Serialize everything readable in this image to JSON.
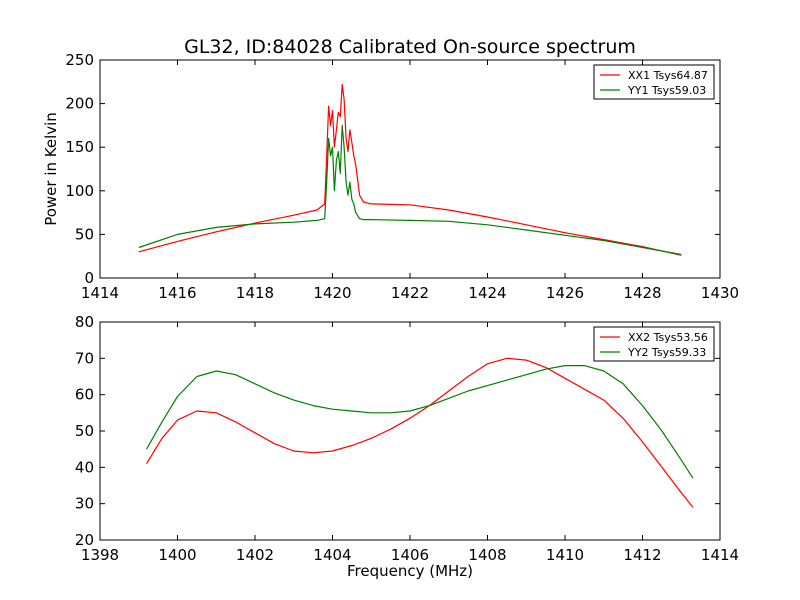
{
  "figure": {
    "title": "GL32, ID:84028 Calibrated On-source spectrum"
  },
  "chart_data": [
    {
      "type": "line",
      "title": "GL32, ID:84028 Calibrated On-source spectrum",
      "xlabel": "",
      "ylabel": "Power in Kelvin",
      "xlim": [
        1414,
        1430
      ],
      "ylim": [
        0,
        250
      ],
      "xticks": [
        1414,
        1416,
        1418,
        1420,
        1422,
        1424,
        1426,
        1428,
        1430
      ],
      "yticks": [
        0,
        50,
        100,
        150,
        200,
        250
      ],
      "grid": false,
      "legend_position": "top-right",
      "series": [
        {
          "name": "XX1 Tsys64.87",
          "color": "#ff0000",
          "x": [
            1415.0,
            1416.0,
            1417.0,
            1418.0,
            1419.0,
            1419.6,
            1419.8,
            1419.85,
            1419.9,
            1419.95,
            1420.0,
            1420.05,
            1420.1,
            1420.15,
            1420.2,
            1420.25,
            1420.3,
            1420.35,
            1420.4,
            1420.45,
            1420.5,
            1420.55,
            1420.6,
            1420.7,
            1420.8,
            1421.0,
            1422.0,
            1423.0,
            1424.0,
            1425.0,
            1426.0,
            1427.0,
            1428.0,
            1429.0
          ],
          "y": [
            30,
            42,
            53,
            63,
            72,
            78,
            85,
            140,
            197,
            175,
            192,
            150,
            170,
            190,
            185,
            222,
            205,
            160,
            145,
            170,
            155,
            140,
            130,
            95,
            87,
            85,
            84,
            78,
            70,
            61,
            52,
            44,
            36,
            26
          ]
        },
        {
          "name": "YY1 Tsys59.03",
          "color": "#008000",
          "x": [
            1415.0,
            1416.0,
            1417.0,
            1418.0,
            1419.0,
            1419.6,
            1419.8,
            1419.85,
            1419.9,
            1419.95,
            1420.0,
            1420.05,
            1420.1,
            1420.15,
            1420.2,
            1420.25,
            1420.3,
            1420.35,
            1420.4,
            1420.45,
            1420.5,
            1420.55,
            1420.6,
            1420.7,
            1420.8,
            1421.0,
            1422.0,
            1423.0,
            1424.0,
            1425.0,
            1426.0,
            1427.0,
            1428.0,
            1429.0
          ],
          "y": [
            35,
            50,
            58,
            62,
            64,
            66,
            68,
            110,
            160,
            140,
            150,
            100,
            135,
            145,
            120,
            175,
            150,
            110,
            95,
            110,
            90,
            85,
            75,
            68,
            67,
            67,
            66,
            65,
            61,
            55,
            49,
            43,
            35,
            27
          ]
        }
      ]
    },
    {
      "type": "line",
      "title": "",
      "xlabel": "Frequency (MHz)",
      "ylabel": "",
      "xlim": [
        1398,
        1414
      ],
      "ylim": [
        20,
        80
      ],
      "xticks": [
        1398,
        1400,
        1402,
        1404,
        1406,
        1408,
        1410,
        1412,
        1414
      ],
      "yticks": [
        20,
        30,
        40,
        50,
        60,
        70,
        80
      ],
      "grid": false,
      "legend_position": "top-right",
      "series": [
        {
          "name": "XX2 Tsys53.56",
          "color": "#ff0000",
          "x": [
            1399.2,
            1399.6,
            1400.0,
            1400.5,
            1401.0,
            1401.5,
            1402.0,
            1402.5,
            1403.0,
            1403.5,
            1404.0,
            1404.5,
            1405.0,
            1405.5,
            1406.0,
            1406.5,
            1407.0,
            1407.5,
            1408.0,
            1408.5,
            1409.0,
            1409.5,
            1410.0,
            1410.5,
            1411.0,
            1411.5,
            1412.0,
            1412.5,
            1413.0,
            1413.3
          ],
          "y": [
            41,
            48,
            53,
            55.5,
            55,
            52.5,
            49.5,
            46.5,
            44.5,
            44,
            44.5,
            46,
            48,
            50.5,
            53.5,
            57,
            61,
            65,
            68.5,
            70,
            69.5,
            67.5,
            64.5,
            61.5,
            58.5,
            53.5,
            47,
            40,
            33,
            29
          ]
        },
        {
          "name": "YY2 Tsys59.33",
          "color": "#008000",
          "x": [
            1399.2,
            1399.6,
            1400.0,
            1400.5,
            1401.0,
            1401.5,
            1402.0,
            1402.5,
            1403.0,
            1403.5,
            1404.0,
            1404.5,
            1405.0,
            1405.5,
            1406.0,
            1406.5,
            1407.0,
            1407.5,
            1408.0,
            1408.5,
            1409.0,
            1409.5,
            1410.0,
            1410.5,
            1411.0,
            1411.5,
            1412.0,
            1412.5,
            1413.0,
            1413.3
          ],
          "y": [
            45,
            52.5,
            59.5,
            65,
            66.5,
            65.5,
            63,
            60.5,
            58.5,
            57,
            56,
            55.5,
            55,
            55,
            55.5,
            57,
            59,
            61,
            62.5,
            64,
            65.5,
            67,
            68,
            68,
            66.5,
            63,
            57,
            50,
            42,
            37
          ]
        }
      ]
    }
  ]
}
